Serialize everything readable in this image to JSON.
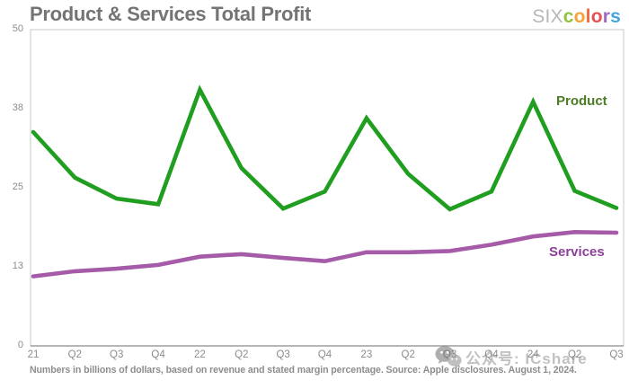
{
  "header": {
    "title": "Product & Services Total Profit"
  },
  "logo": {
    "prefix": "SIX",
    "letters": [
      {
        "ch": "c",
        "color": "#8fc43e"
      },
      {
        "ch": "o",
        "color": "#f7a238"
      },
      {
        "ch": "l",
        "color": "#f16a3d"
      },
      {
        "ch": "o",
        "color": "#e94f53"
      },
      {
        "ch": "r",
        "color": "#9c68c0"
      },
      {
        "ch": "s",
        "color": "#46a4e1"
      }
    ]
  },
  "chart_data": {
    "type": "line",
    "title": "Product & Services Total Profit",
    "categories": [
      "21",
      "Q2",
      "Q3",
      "Q4",
      "22",
      "Q2",
      "Q3",
      "Q4",
      "23",
      "Q2",
      "Q3",
      "Q4",
      "24",
      "Q2",
      "Q3"
    ],
    "series": [
      {
        "name": "Product",
        "color": "#1f9e1f",
        "label_color": "#4c7c24",
        "values": [
          33.8,
          26.6,
          23.3,
          22.4,
          40.5,
          28.1,
          21.7,
          24.4,
          36.0,
          27.2,
          21.6,
          24.4,
          38.6,
          24.5,
          21.8
        ]
      },
      {
        "name": "Services",
        "color": "#a55ba8",
        "label_color": "#8d4099",
        "values": [
          11.0,
          11.8,
          12.2,
          12.8,
          14.1,
          14.5,
          13.9,
          13.4,
          14.8,
          14.8,
          15.0,
          16.0,
          17.3,
          18.0,
          17.9
        ]
      }
    ],
    "ylim": [
      0,
      50
    ],
    "yticklabels": [
      "0",
      "13",
      "25",
      "38",
      "50"
    ],
    "xlabel": "",
    "ylabel": "",
    "grid": false,
    "legend_position": "inline-right-of-lines"
  },
  "footer": {
    "note": "Numbers in billions of dollars, based on revenue and stated margin percentage. Source: Apple disclosures. August 1, 2024."
  },
  "watermark": {
    "icon": "wechat-icon",
    "text": "公众号: ICshare"
  }
}
